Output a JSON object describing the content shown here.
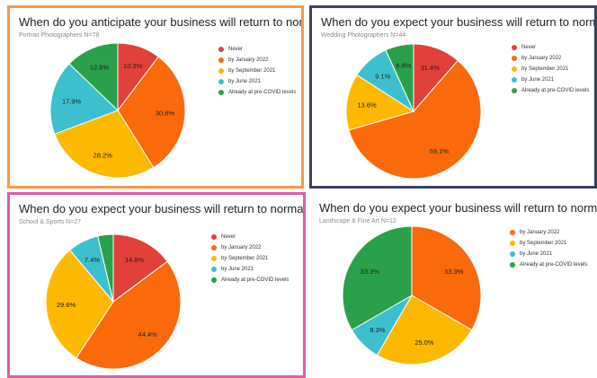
{
  "colors": {
    "Never": "#e2403a",
    "by January 2022": "#fa6a0a",
    "by September 2021": "#fcb900",
    "by June 2021": "#3cbfce",
    "Already at pre-COVID levels": "#2ba04a"
  },
  "chart_data": [
    {
      "type": "pie",
      "title": "When do you anticipate your business will return to normal?",
      "subtitle": "Portrait Photographers N=78",
      "legend_position": "right",
      "categories": [
        "Never",
        "by January 2022",
        "by September 2021",
        "by June 2021",
        "Already at pre-COVID levels"
      ],
      "values": [
        10.3,
        30.8,
        28.2,
        17.9,
        12.8
      ],
      "labels": [
        "10.3%",
        "30.8%",
        "28.2%",
        "17.9%",
        "12.8%"
      ]
    },
    {
      "type": "pie",
      "title": "When do you expect your business will return to normal?",
      "subtitle": "Wedding Photographers N=44",
      "legend_position": "right",
      "categories": [
        "Never",
        "by January 2022",
        "by September 2021",
        "by June 2021",
        "Already at pre-COVID levels"
      ],
      "values": [
        11.4,
        59.1,
        13.6,
        9.1,
        6.8
      ],
      "labels": [
        "11.4%",
        "59.1%",
        "13.6%",
        "9.1%",
        "6.8%"
      ]
    },
    {
      "type": "pie",
      "title": "When do you expect your business will return to normal?",
      "subtitle": "School & Sports N=27",
      "legend_position": "right",
      "categories": [
        "Never",
        "by January 2022",
        "by September 2021",
        "by June 2021",
        "Already at pre-COVID levels"
      ],
      "values": [
        14.8,
        44.4,
        29.6,
        7.4,
        3.7
      ],
      "labels": [
        "14.8%",
        "44.4%",
        "29.6%",
        "7.4%",
        ""
      ]
    },
    {
      "type": "pie",
      "title": "When do you expect your business will return to normal?",
      "subtitle": "Landscape & Fine Art N=12",
      "legend_position": "right",
      "categories": [
        "by January 2022",
        "by September 2021",
        "by June 2021",
        "Already at pre-COVID levels"
      ],
      "values": [
        33.3,
        25.0,
        8.3,
        33.3
      ],
      "labels": [
        "33.3%",
        "25.0%",
        "8.3%",
        "33.3%"
      ]
    }
  ]
}
